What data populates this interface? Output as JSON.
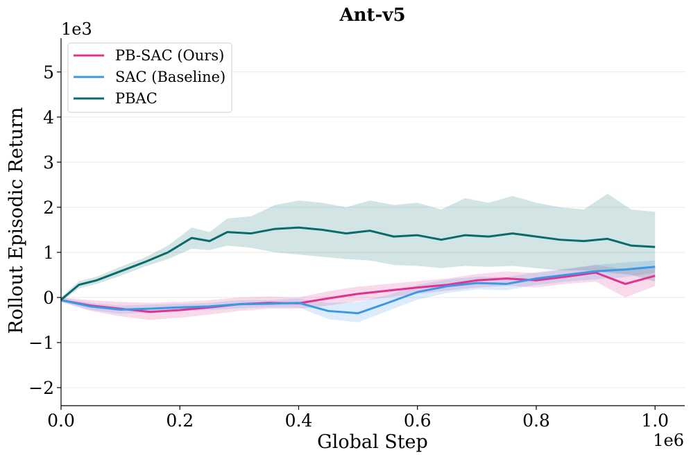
{
  "chart_data": {
    "type": "line",
    "title": "Ant-v5",
    "xlabel": "Global Step",
    "ylabel": "Rollout Episodic Return",
    "x_multiplier": "1e6",
    "y_multiplier": "1e3",
    "xlim": [
      0.0,
      1.05
    ],
    "ylim": [
      -2.4,
      5.75
    ],
    "xticks": [
      0.0,
      0.2,
      0.4,
      0.6,
      0.8,
      1.0
    ],
    "xtick_labels": [
      "0.0",
      "0.2",
      "0.4",
      "0.6",
      "0.8",
      "1.0"
    ],
    "yticks": [
      -2,
      -1,
      0,
      1,
      2,
      3,
      4,
      5
    ],
    "ytick_labels": [
      "−2",
      "−1",
      "0",
      "1",
      "2",
      "3",
      "4",
      "5"
    ],
    "grid": true,
    "legend_position": "top-left",
    "series": [
      {
        "name": "PB-SAC (Ours)",
        "color": "#e0328f",
        "x": [
          0.0,
          0.05,
          0.1,
          0.15,
          0.2,
          0.25,
          0.3,
          0.35,
          0.4,
          0.45,
          0.5,
          0.55,
          0.6,
          0.65,
          0.7,
          0.75,
          0.8,
          0.85,
          0.9,
          0.95,
          1.0
        ],
        "y": [
          -0.06,
          -0.18,
          -0.25,
          -0.32,
          -0.28,
          -0.22,
          -0.15,
          -0.12,
          -0.13,
          -0.02,
          0.08,
          0.15,
          0.22,
          0.28,
          0.38,
          0.42,
          0.38,
          0.46,
          0.55,
          0.3,
          0.48
        ],
        "band_low": [
          -0.1,
          -0.3,
          -0.42,
          -0.5,
          -0.45,
          -0.38,
          -0.3,
          -0.25,
          -0.25,
          -0.18,
          -0.08,
          0.0,
          0.08,
          0.15,
          0.22,
          0.26,
          0.22,
          0.3,
          0.35,
          0.0,
          0.25
        ],
        "band_high": [
          0.0,
          -0.06,
          -0.1,
          -0.12,
          -0.1,
          -0.06,
          0.0,
          0.02,
          0.0,
          0.14,
          0.24,
          0.3,
          0.36,
          0.42,
          0.52,
          0.58,
          0.54,
          0.62,
          0.72,
          0.62,
          0.7
        ]
      },
      {
        "name": "SAC (Baseline)",
        "color": "#3b98e4",
        "x": [
          0.0,
          0.05,
          0.1,
          0.15,
          0.2,
          0.25,
          0.3,
          0.35,
          0.4,
          0.45,
          0.5,
          0.55,
          0.6,
          0.65,
          0.7,
          0.75,
          0.8,
          0.85,
          0.9,
          0.95,
          1.0
        ],
        "y": [
          -0.06,
          -0.2,
          -0.27,
          -0.25,
          -0.22,
          -0.2,
          -0.15,
          -0.14,
          -0.12,
          -0.3,
          -0.35,
          -0.12,
          0.12,
          0.25,
          0.32,
          0.3,
          0.42,
          0.5,
          0.58,
          0.62,
          0.68
        ],
        "band_low": [
          -0.1,
          -0.28,
          -0.36,
          -0.34,
          -0.3,
          -0.28,
          -0.24,
          -0.22,
          -0.22,
          -0.48,
          -0.55,
          -0.3,
          -0.05,
          0.1,
          0.18,
          0.16,
          0.28,
          0.35,
          0.4,
          0.45,
          0.55
        ],
        "band_high": [
          0.0,
          -0.12,
          -0.18,
          -0.16,
          -0.14,
          -0.12,
          -0.06,
          -0.06,
          -0.02,
          -0.12,
          -0.1,
          0.05,
          0.28,
          0.4,
          0.46,
          0.45,
          0.56,
          0.64,
          0.72,
          0.78,
          0.82
        ]
      },
      {
        "name": "PBAC",
        "color": "#0b6b6b",
        "x": [
          0.0,
          0.03,
          0.06,
          0.1,
          0.14,
          0.18,
          0.22,
          0.25,
          0.28,
          0.32,
          0.36,
          0.4,
          0.44,
          0.48,
          0.52,
          0.56,
          0.6,
          0.64,
          0.68,
          0.72,
          0.76,
          0.8,
          0.84,
          0.88,
          0.92,
          0.96,
          1.0
        ],
        "y": [
          -0.05,
          0.28,
          0.38,
          0.58,
          0.78,
          1.0,
          1.32,
          1.25,
          1.45,
          1.42,
          1.52,
          1.55,
          1.5,
          1.42,
          1.48,
          1.35,
          1.38,
          1.28,
          1.38,
          1.35,
          1.42,
          1.35,
          1.28,
          1.25,
          1.3,
          1.15,
          1.12
        ],
        "band_low": [
          -0.1,
          0.2,
          0.3,
          0.48,
          0.68,
          0.85,
          1.08,
          1.05,
          1.15,
          1.1,
          1.0,
          0.95,
          0.9,
          0.85,
          0.82,
          0.72,
          0.7,
          0.65,
          0.7,
          0.68,
          0.7,
          0.65,
          0.6,
          0.6,
          0.55,
          0.5,
          0.35
        ],
        "band_high": [
          0.0,
          0.36,
          0.46,
          0.68,
          0.88,
          1.15,
          1.55,
          1.45,
          1.75,
          1.8,
          2.05,
          2.15,
          2.1,
          2.0,
          2.15,
          2.05,
          2.1,
          1.95,
          2.2,
          2.1,
          2.25,
          2.1,
          2.0,
          1.95,
          2.3,
          1.95,
          1.9
        ]
      }
    ]
  }
}
